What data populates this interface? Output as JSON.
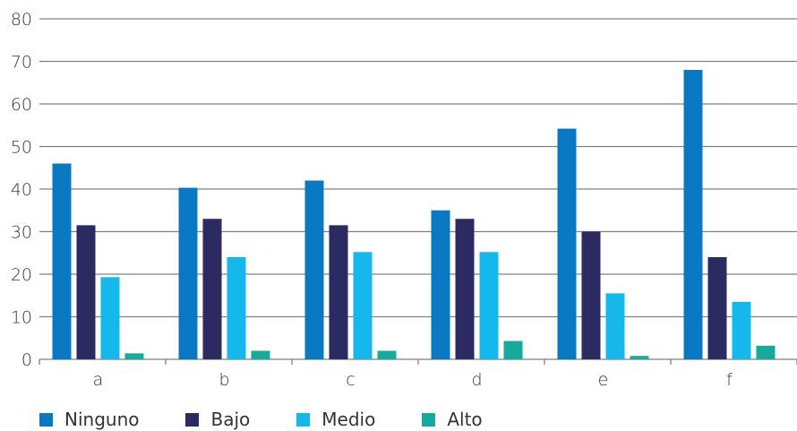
{
  "chart_data": {
    "type": "bar",
    "categories": [
      "a",
      "b",
      "c",
      "d",
      "e",
      "f"
    ],
    "series": [
      {
        "name": "Ninguno",
        "color": "#0878C2",
        "values": [
          46,
          40.3,
          42,
          35,
          54.2,
          68
        ]
      },
      {
        "name": "Bajo",
        "color": "#2B2B62",
        "values": [
          31.5,
          33,
          31.5,
          33,
          30,
          24
        ]
      },
      {
        "name": "Medio",
        "color": "#14B8EC",
        "values": [
          19.3,
          24,
          25.2,
          25.2,
          15.5,
          13.5
        ]
      },
      {
        "name": "Alto",
        "color": "#17A99C",
        "values": [
          1.4,
          2,
          2,
          4.3,
          0.8,
          3.2
        ]
      }
    ],
    "ylim": [
      0,
      80
    ],
    "yticks": [
      "0",
      "10",
      "20",
      "30",
      "40",
      "50",
      "60",
      "70",
      "80"
    ],
    "grid": true,
    "legend_position": "bottom-left",
    "title": "",
    "xlabel": "",
    "ylabel": ""
  }
}
